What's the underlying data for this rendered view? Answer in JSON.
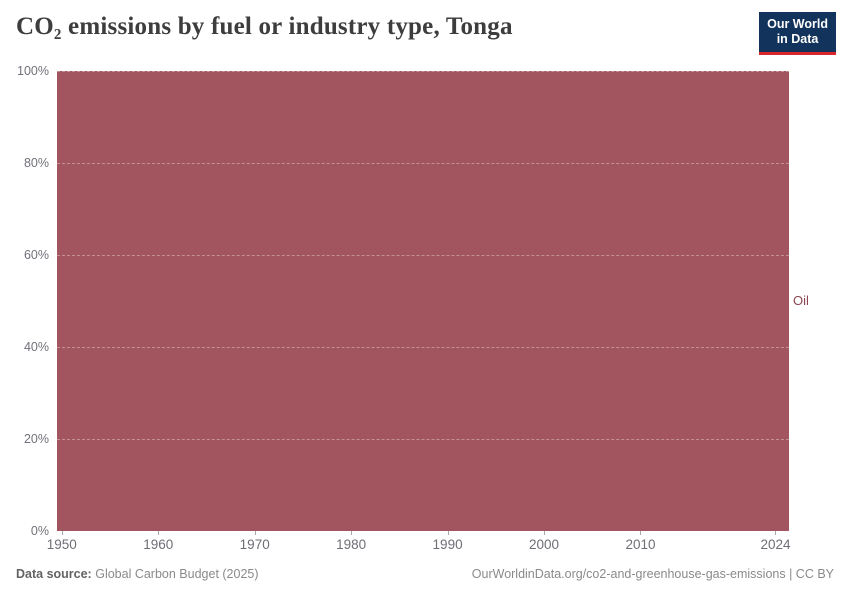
{
  "header": {
    "title": "CO₂ emissions by fuel or industry type, Tonga",
    "logo": {
      "line1": "Our World",
      "line2": "in Data",
      "bg_color": "#12335b",
      "accent_color": "#d8262c",
      "text_color": "#ffffff"
    }
  },
  "chart_data": {
    "type": "area",
    "stacked": true,
    "unit": "%",
    "title": "CO₂ emissions by fuel or industry type, Tonga",
    "xlabel": "",
    "ylabel": "",
    "x_start": 1950,
    "x_end": 2024,
    "series": [
      {
        "name": "Oil",
        "color": "#a2555f",
        "label_color": "#8d4751",
        "share_percent": 100,
        "note": "Oil accounts for 100% of emissions in every year from 1950 to 2024",
        "values": [
          100,
          100
        ]
      }
    ],
    "x": [
      1950,
      2024
    ],
    "xticks": [
      1950,
      1960,
      1970,
      1980,
      1990,
      2000,
      2010,
      2024
    ],
    "xtick_labels": [
      "1950",
      "1960",
      "1970",
      "1980",
      "1990",
      "2000",
      "2010",
      "2024"
    ],
    "yticks": [
      0,
      20,
      40,
      60,
      80,
      100
    ],
    "ytick_labels": [
      "0%",
      "20%",
      "40%",
      "60%",
      "80%",
      "100%"
    ],
    "xlim": [
      1949.5,
      2025.4
    ],
    "ylim": [
      0,
      100
    ],
    "grid": "horizontal-dashed",
    "legend_position": "right-of-plot"
  },
  "footer": {
    "source_label": "Data source:",
    "source_value": "Global Carbon Budget (2025)",
    "credit": "OurWorldinData.org/co2-and-greenhouse-gas-emissions | CC BY"
  }
}
